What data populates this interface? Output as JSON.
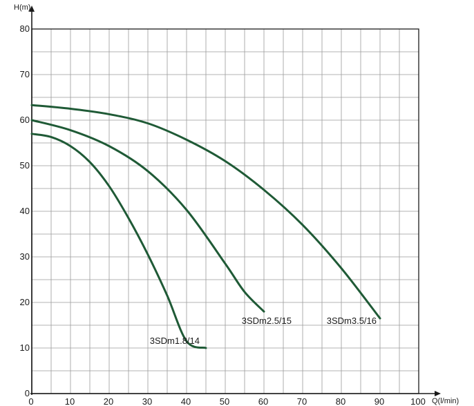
{
  "chart_data": {
    "type": "line",
    "xlabel": "Q(l/min)",
    "ylabel": "H(m)",
    "xlim": [
      0,
      100
    ],
    "ylim": [
      0,
      80
    ],
    "x_ticks": [
      0,
      10,
      20,
      30,
      40,
      50,
      60,
      70,
      80,
      90,
      100
    ],
    "y_ticks": [
      0,
      10,
      20,
      30,
      40,
      50,
      60,
      70,
      80
    ],
    "grid": true,
    "grid_minor_x": 5,
    "grid_minor_y": 5,
    "line_color": "#1f5a36",
    "series": [
      {
        "name": "3SDm1.8/14",
        "x": [
          0,
          5,
          10,
          15,
          20,
          25,
          30,
          35,
          40,
          45
        ],
        "y": [
          57,
          56.3,
          54.3,
          50.8,
          45.5,
          38.5,
          30.5,
          21.5,
          11.5,
          10
        ]
      },
      {
        "name": "3SDm2.5/15",
        "x": [
          0,
          10,
          20,
          30,
          40,
          50,
          55,
          60
        ],
        "y": [
          60,
          57.8,
          54.3,
          48.8,
          40.3,
          28.5,
          22.3,
          18
        ]
      },
      {
        "name": "3SDm3.5/16",
        "x": [
          0,
          10,
          20,
          30,
          40,
          50,
          60,
          70,
          80,
          90
        ],
        "y": [
          63.3,
          62.5,
          61.3,
          59.3,
          55.7,
          51,
          44.7,
          37,
          27.5,
          16.5
        ]
      }
    ]
  }
}
